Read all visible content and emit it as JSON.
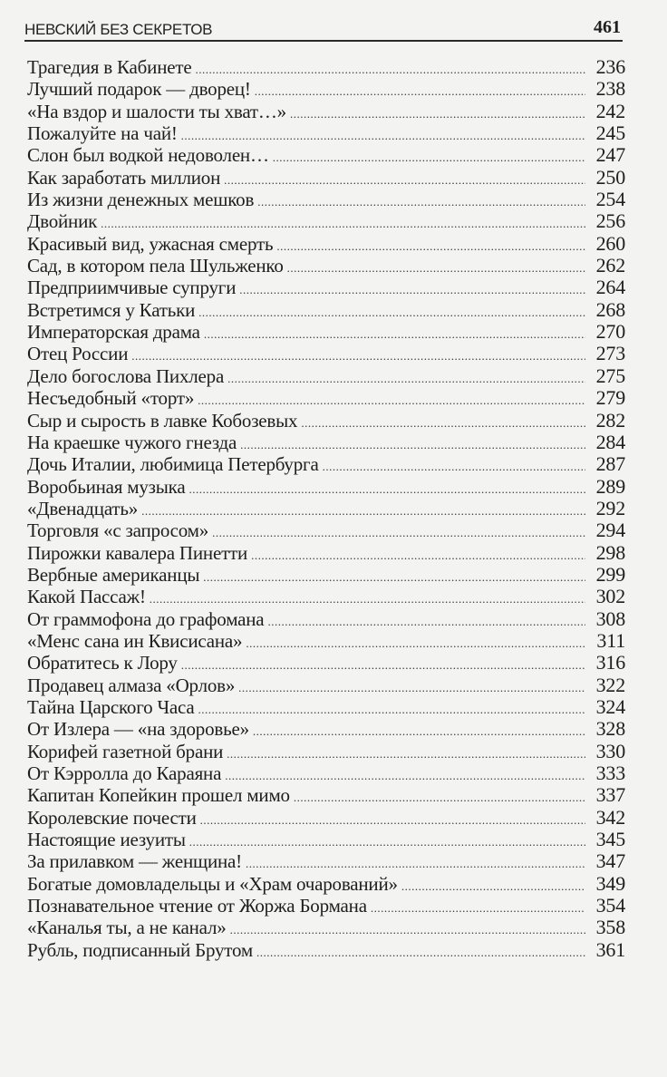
{
  "header": {
    "title": "НЕВСКИЙ БЕЗ СЕКРЕТОВ",
    "page_number": "461"
  },
  "entries": [
    {
      "title": "Трагедия в Кабинете",
      "page": "236"
    },
    {
      "title": "Лучший подарок — дворец!",
      "page": "238"
    },
    {
      "title": "«На вздор и шалости ты хват…»",
      "page": "242"
    },
    {
      "title": "Пожалуйте на чай!",
      "page": "245"
    },
    {
      "title": "Слон был водкой недоволен…",
      "page": "247"
    },
    {
      "title": "Как заработать миллион",
      "page": "250"
    },
    {
      "title": "Из жизни денежных мешков",
      "page": "254"
    },
    {
      "title": "Двойник",
      "page": "256"
    },
    {
      "title": "Красивый вид, ужасная смерть",
      "page": "260"
    },
    {
      "title": "Сад, в котором пела Шульженко",
      "page": "262"
    },
    {
      "title": "Предприимчивые супруги",
      "page": "264"
    },
    {
      "title": "Встретимся у Катьки",
      "page": "268"
    },
    {
      "title": "Императорская драма",
      "page": "270"
    },
    {
      "title": "Отец России",
      "page": "273"
    },
    {
      "title": "Дело богослова Пихлера",
      "page": "275"
    },
    {
      "title": "Несъедобный «торт»",
      "page": "279"
    },
    {
      "title": "Сыр и сырость в лавке Кобозевых",
      "page": "282"
    },
    {
      "title": "На краешке чужого гнезда",
      "page": "284"
    },
    {
      "title": "Дочь Италии, любимица Петербурга",
      "page": "287"
    },
    {
      "title": "Воробьиная музыка",
      "page": "289"
    },
    {
      "title": "«Двенадцать»",
      "page": "292"
    },
    {
      "title": "Торговля «с запросом»",
      "page": "294"
    },
    {
      "title": "Пирожки кавалера Пинетти",
      "page": "298"
    },
    {
      "title": "Вербные американцы",
      "page": "299"
    },
    {
      "title": "Какой Пассаж!",
      "page": "302"
    },
    {
      "title": "От граммофона до графомана",
      "page": "308"
    },
    {
      "title": "«Менс сана ин Квисисана»",
      "page": "311"
    },
    {
      "title": "Обратитесь к Лору",
      "page": "316"
    },
    {
      "title": "Продавец алмаза «Орлов»",
      "page": "322"
    },
    {
      "title": "Тайна Царского Часа",
      "page": "324"
    },
    {
      "title": "От Излера — «на здоровье»",
      "page": "328"
    },
    {
      "title": "Корифей газетной брани",
      "page": "330"
    },
    {
      "title": "От Кэрролла до Караяна",
      "page": "333"
    },
    {
      "title": "Капитан Копейкин прошел мимо",
      "page": "337"
    },
    {
      "title": "Королевские почести",
      "page": "342"
    },
    {
      "title": "Настоящие иезуиты",
      "page": "345"
    },
    {
      "title": "За прилавком — женщина!",
      "page": "347"
    },
    {
      "title": "Богатые домовладельцы и «Храм очарований»",
      "page": "349"
    },
    {
      "title": "Познавательное чтение от Жоржа Бормана",
      "page": "354"
    },
    {
      "title": "«Каналья ты, а не канал»",
      "page": "358"
    },
    {
      "title": "Рубль, подписанный Брутом",
      "page": "361"
    }
  ]
}
